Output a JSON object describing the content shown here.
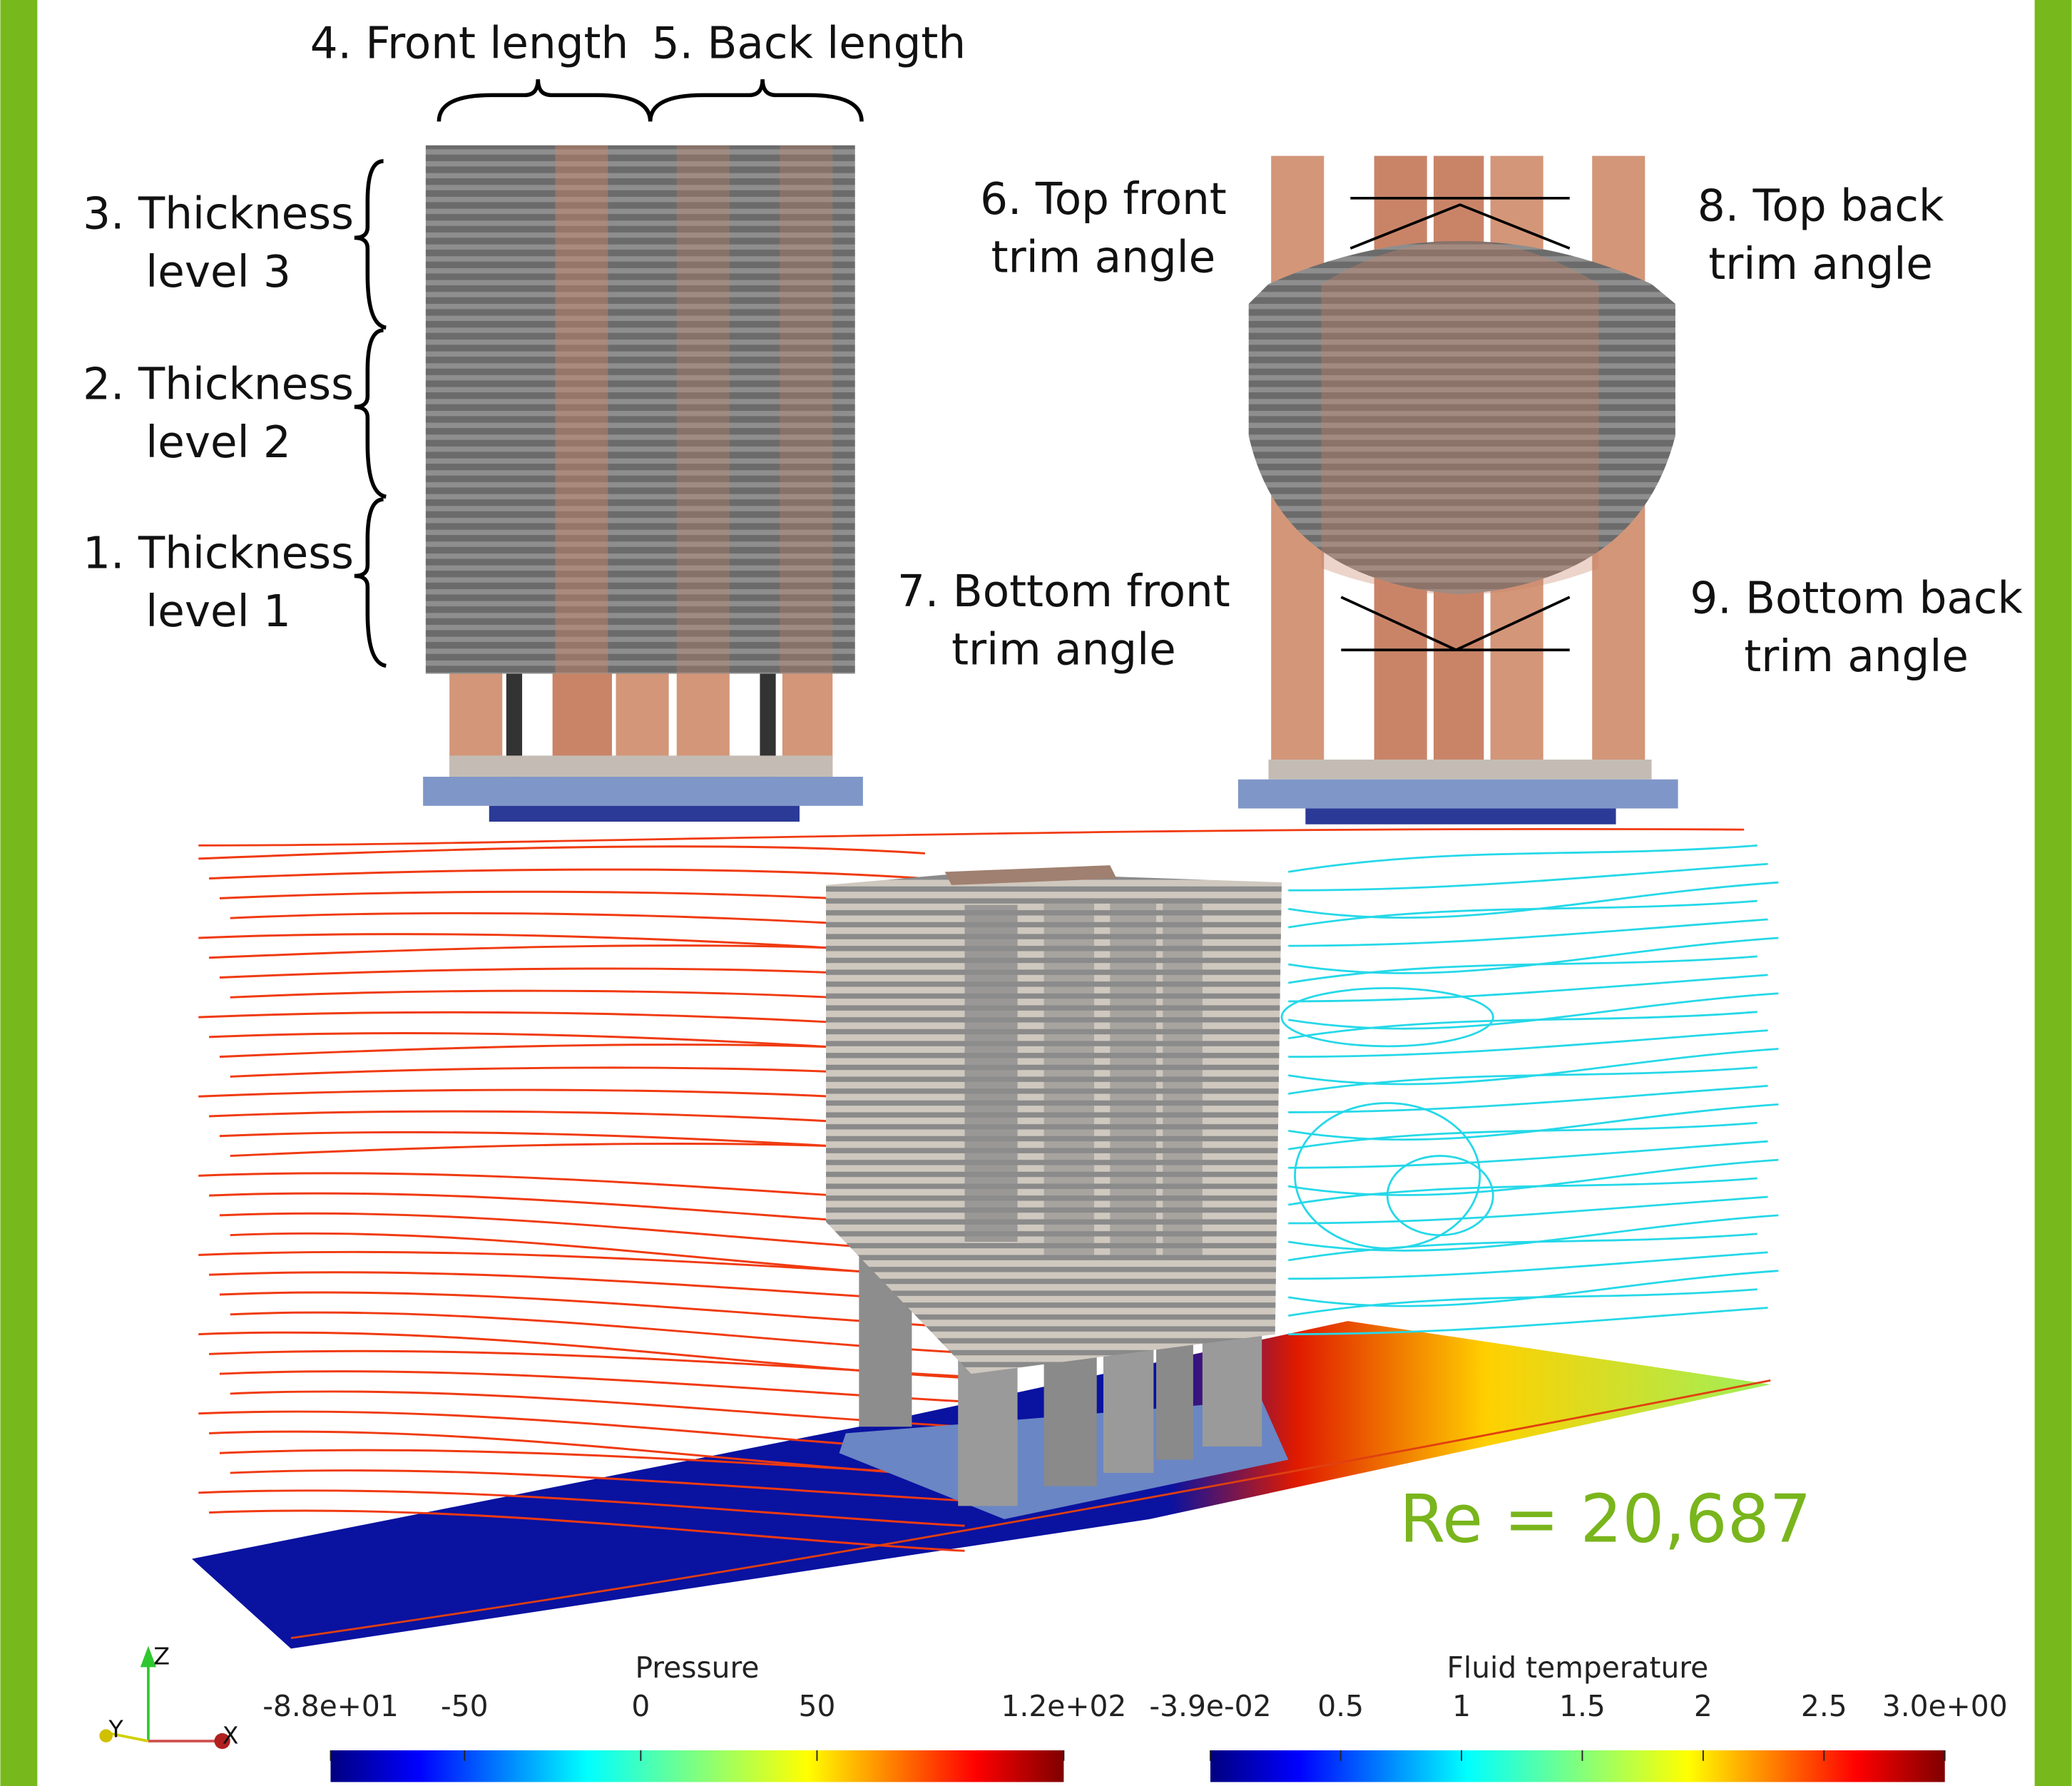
{
  "labels": {
    "front_length": "4. Front length",
    "back_length": "5. Back length",
    "thickness_3": [
      "3. Thickness",
      "level 3"
    ],
    "thickness_2": [
      "2. Thickness",
      "level 2"
    ],
    "thickness_1": [
      "1. Thickness",
      "level 1"
    ],
    "top_front": [
      "6. Top front",
      "trim angle"
    ],
    "bottom_front": [
      "7. Bottom front",
      "trim angle"
    ],
    "top_back": [
      "8. Top back",
      "trim angle"
    ],
    "bottom_back": [
      "9. Bottom back",
      "trim angle"
    ]
  },
  "reynolds": "Re = 20,687",
  "axes_triad": {
    "z": "Z",
    "y": "Y",
    "x": "X"
  },
  "colorbars": [
    {
      "title": "Pressure",
      "range": [
        -88,
        120
      ],
      "ticks": [
        {
          "value": -88,
          "label": "-8.8e+01"
        },
        -50,
        0,
        50,
        {
          "value": 120,
          "label": "1.2e+02"
        }
      ]
    },
    {
      "title": "Fluid temperature",
      "range": [
        -0.039,
        3.0
      ],
      "ticks": [
        {
          "value": -0.039,
          "label": "-3.9e-02"
        },
        0.5,
        1,
        1.5,
        2,
        2.5,
        {
          "value": 3.0,
          "label": "3.0e+00"
        }
      ]
    }
  ]
}
